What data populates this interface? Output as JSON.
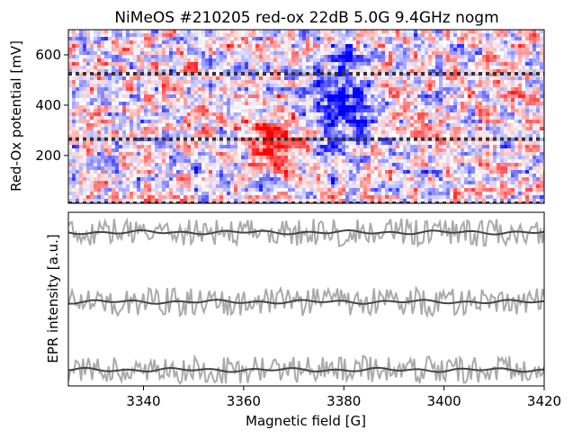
{
  "figure": {
    "title": "NiMeOS #210205 red-ox 22dB 5.0G 9.4GHz nogm"
  },
  "chart_data": [
    {
      "type": "heatmap",
      "title": "NiMeOS #210205 red-ox 22dB 5.0G 9.4GHz nogm",
      "xlabel": "",
      "ylabel": "Red-Ox potential [mV]",
      "xlim": [
        3325,
        3420
      ],
      "ylim": [
        10,
        700
      ],
      "yticks": [
        200,
        400,
        600
      ],
      "colormap": "bwr",
      "colors": {
        "negative": "#0000ff",
        "zero": "#ffffff",
        "positive": "#ff0000"
      },
      "features": [
        {
          "label": "red lobe",
          "x_range": [
            3359,
            3372
          ],
          "y_range": [
            160,
            350
          ],
          "sign": "positive"
        },
        {
          "label": "blue lobe",
          "x_range": [
            3373,
            3386
          ],
          "y_range": [
            180,
            700
          ],
          "sign": "negative"
        }
      ],
      "reference_lines": [
        {
          "y": 525,
          "style": "dotted",
          "color": "#333333"
        },
        {
          "y": 265,
          "style": "dotted",
          "color": "#333333"
        },
        {
          "y": 10,
          "style": "dotted",
          "color": "#333333"
        }
      ]
    },
    {
      "type": "line",
      "xlabel": "Magnetic field [G]",
      "ylabel": "EPR intensity [a.u.]",
      "xlim": [
        3325,
        3420
      ],
      "xticks": [
        3340,
        3360,
        3380,
        3400,
        3420
      ],
      "yticks_visible": false,
      "series_style": {
        "raw_color": "#aaaaaa",
        "fit_color": "#444444"
      },
      "series": [
        {
          "offset": 525,
          "noise_amplitude": 28,
          "baseline": "flat"
        },
        {
          "offset": 265,
          "noise_amplitude": 28,
          "baseline": "flat"
        },
        {
          "offset": 10,
          "noise_amplitude": 28,
          "baseline": "flat"
        }
      ]
    }
  ]
}
